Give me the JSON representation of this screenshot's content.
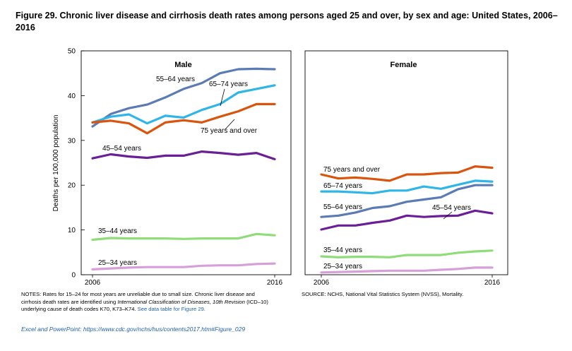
{
  "title": "Figure 29. Chronic liver disease and cirrhosis death rates among persons aged 25 and over, by sex and age: United States, 2006–2016",
  "notes": {
    "prefix": "NOTES: Rates for 15–24 for most years are unreliable due to small size. Chronic liver disease and cirrhosis death rates are identified using ",
    "italic": "International Classification of Diseases, 10th Revision",
    "suffix": " (ICD–10) underlying cause of death codes K70, K73–K74. ",
    "link": "See data table for Figure 29."
  },
  "source": "SOURCE: NCHS, National Vital Statistics System (NVSS), Mortality.",
  "excel": "Excel and PowerPoint: https://www.cdc.gov/nchs/hus/contents2017.htm#Figure_029",
  "chart_data": {
    "type": "line",
    "ylabel": "Deaths per 100,000 population",
    "ylim": [
      0,
      50
    ],
    "yticks": [
      "0",
      "10",
      "20",
      "30",
      "40",
      "50"
    ],
    "x": [
      2006,
      2007,
      2008,
      2009,
      2010,
      2011,
      2012,
      2013,
      2014,
      2015,
      2016
    ],
    "xtick_labels": [
      "2006",
      "2016"
    ],
    "grid": false,
    "panels": [
      {
        "title": "Male",
        "series": [
          {
            "name": "25–34 years",
            "color": "#d79fd7",
            "values": [
              1.2,
              1.4,
              1.6,
              1.7,
              1.7,
              1.7,
              2.0,
              2.1,
              2.1,
              2.4,
              2.5
            ]
          },
          {
            "name": "35–44 years",
            "color": "#8fdc78",
            "values": [
              7.8,
              8.2,
              8.1,
              8.1,
              8.1,
              8.0,
              8.1,
              8.1,
              8.1,
              9.1,
              8.8
            ]
          },
          {
            "name": "45–54 years",
            "color": "#6b1f96",
            "values": [
              26.0,
              26.9,
              26.4,
              26.1,
              26.6,
              26.6,
              27.5,
              27.2,
              26.8,
              27.2,
              25.8
            ]
          },
          {
            "name": "55–64 years",
            "color": "#5a7bb4",
            "values": [
              33.1,
              35.9,
              37.2,
              38.0,
              39.6,
              41.5,
              42.8,
              45.0,
              45.9,
              46.0,
              45.9
            ]
          },
          {
            "name": "65–74 years",
            "color": "#2fb5e8",
            "values": [
              34.0,
              35.3,
              35.8,
              33.8,
              35.5,
              35.1,
              36.8,
              38.1,
              40.7,
              41.5,
              42.3
            ]
          },
          {
            "name": "75 years and over",
            "color": "#d9540d",
            "values": [
              34.0,
              34.4,
              33.8,
              31.6,
              34.0,
              34.5,
              34.0,
              35.3,
              36.5,
              38.1,
              38.1
            ]
          }
        ]
      },
      {
        "title": "Female",
        "series": [
          {
            "name": "25–34 years",
            "color": "#d79fd7",
            "values": [
              0.5,
              0.6,
              0.7,
              0.8,
              0.9,
              0.9,
              0.9,
              1.1,
              1.3,
              1.6,
              1.6
            ]
          },
          {
            "name": "35–44 years",
            "color": "#8fdc78",
            "values": [
              4.1,
              3.9,
              4.0,
              4.0,
              3.9,
              4.4,
              4.4,
              4.4,
              4.9,
              5.2,
              5.4
            ]
          },
          {
            "name": "45–54 years",
            "color": "#6b1f96",
            "values": [
              10.1,
              11.0,
              11.0,
              11.6,
              12.1,
              13.2,
              12.9,
              13.1,
              13.2,
              14.3,
              13.7
            ]
          },
          {
            "name": "55–64 years",
            "color": "#5a7bb4",
            "values": [
              12.9,
              13.2,
              13.9,
              14.9,
              15.3,
              16.3,
              16.8,
              17.3,
              19.1,
              20.0,
              20.0
            ]
          },
          {
            "name": "65–74 years",
            "color": "#2fb5e8",
            "values": [
              18.6,
              18.6,
              18.4,
              18.2,
              18.8,
              18.8,
              19.7,
              19.2,
              20.1,
              21.0,
              20.8
            ]
          },
          {
            "name": "75 years and over",
            "color": "#d9540d",
            "values": [
              22.4,
              21.5,
              21.7,
              21.4,
              21.0,
              22.4,
              22.4,
              22.7,
              22.8,
              24.2,
              23.9
            ]
          }
        ]
      }
    ]
  }
}
